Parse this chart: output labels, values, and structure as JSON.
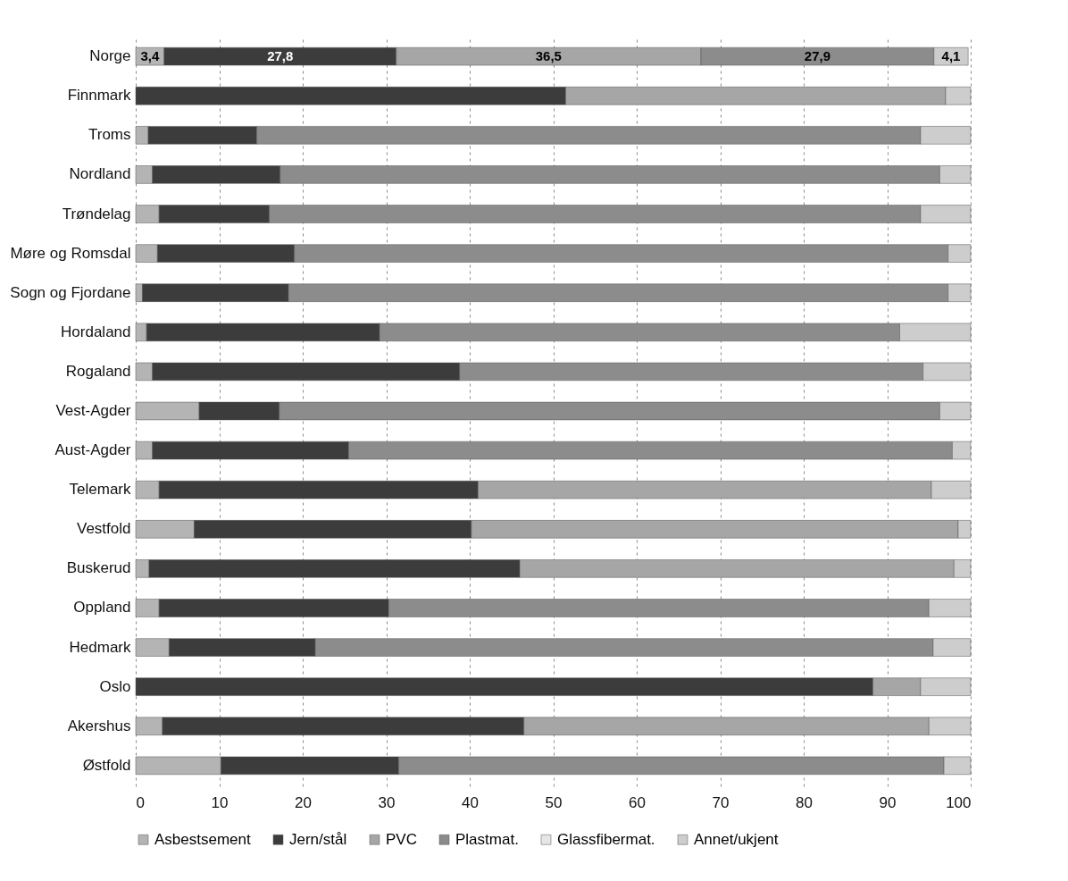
{
  "chart_data": {
    "type": "bar",
    "orientation": "horizontal",
    "stacked": true,
    "grid": "x",
    "legend": "bottom",
    "categories": [
      "Norge",
      "Finnmark",
      "Troms",
      "Nordland",
      "Trøndelag",
      "Møre og Romsdal",
      "Sogn og Fjordane",
      "Hordaland",
      "Rogaland",
      "Vest-Agder",
      "Aust-Agder",
      "Telemark",
      "Vestfold",
      "Buskerud",
      "Oppland",
      "Hedmark",
      "Oslo",
      "Akershus",
      "Østfold"
    ],
    "xlim": [
      0,
      100
    ],
    "xticks": [
      0,
      10,
      20,
      30,
      40,
      50,
      60,
      70,
      80,
      90,
      100
    ],
    "series": [
      {
        "name": "Asbestsement",
        "color": "#b4b4b4",
        "values": [
          3.4,
          null,
          1.5,
          2,
          2.8,
          2.6,
          0.8,
          1.3,
          2,
          7.6,
          2,
          2.8,
          7,
          1.6,
          2.8,
          4,
          null,
          3.2,
          10.2
        ],
        "value_labels": [
          "3,4",
          null,
          null,
          null,
          null,
          null,
          null,
          null,
          null,
          null,
          null,
          null,
          null,
          null,
          null,
          null,
          null,
          null,
          null
        ]
      },
      {
        "name": "Jern/stål",
        "color": "#3c3c3c",
        "values": [
          27.8,
          51.5,
          13,
          15.3,
          13.2,
          16.4,
          17.5,
          27.9,
          36.8,
          9.6,
          23.5,
          38.2,
          33.2,
          44.4,
          27.5,
          17.5,
          88.3,
          43.3,
          21.3
        ],
        "value_labels": [
          "27,8",
          null,
          null,
          null,
          null,
          null,
          null,
          null,
          null,
          null,
          null,
          null,
          null,
          null,
          null,
          null,
          null,
          null,
          null
        ]
      },
      {
        "name": "PVC",
        "color": "#a6a6a6",
        "values": [
          36.5,
          45.5,
          null,
          null,
          null,
          null,
          null,
          null,
          null,
          null,
          null,
          54.3,
          58.3,
          52,
          null,
          null,
          5.7,
          48.5,
          null
        ],
        "value_labels": [
          "36,5",
          null,
          null,
          null,
          null,
          null,
          null,
          null,
          null,
          null,
          null,
          null,
          null,
          null,
          null,
          null,
          null,
          null,
          null
        ]
      },
      {
        "name": "Plastmat.",
        "color": "#8c8c8c",
        "values": [
          27.9,
          null,
          79.5,
          79,
          78,
          78.3,
          79,
          62.3,
          55.5,
          79.1,
          72.3,
          null,
          null,
          null,
          64.7,
          74,
          null,
          null,
          65.3
        ],
        "value_labels": [
          "27,9",
          null,
          null,
          null,
          null,
          null,
          null,
          null,
          null,
          null,
          null,
          null,
          null,
          null,
          null,
          null,
          null,
          null,
          null
        ]
      },
      {
        "name": "Glassfibermat.",
        "color": "#e6e6e6",
        "values": [
          null,
          null,
          null,
          null,
          null,
          null,
          null,
          null,
          null,
          null,
          null,
          null,
          null,
          null,
          null,
          null,
          null,
          null,
          null
        ]
      },
      {
        "name": "Annet/ukjent",
        "color": "#cdcdcd",
        "values": [
          4.1,
          3,
          6,
          3.7,
          6,
          2.7,
          2.7,
          8.5,
          5.7,
          3.7,
          2.2,
          4.7,
          1.5,
          2,
          5,
          4.5,
          6,
          5,
          3.2
        ],
        "value_labels": [
          "4,1",
          null,
          null,
          null,
          null,
          null,
          null,
          null,
          null,
          null,
          null,
          null,
          null,
          null,
          null,
          null,
          null,
          null,
          null
        ]
      }
    ]
  }
}
